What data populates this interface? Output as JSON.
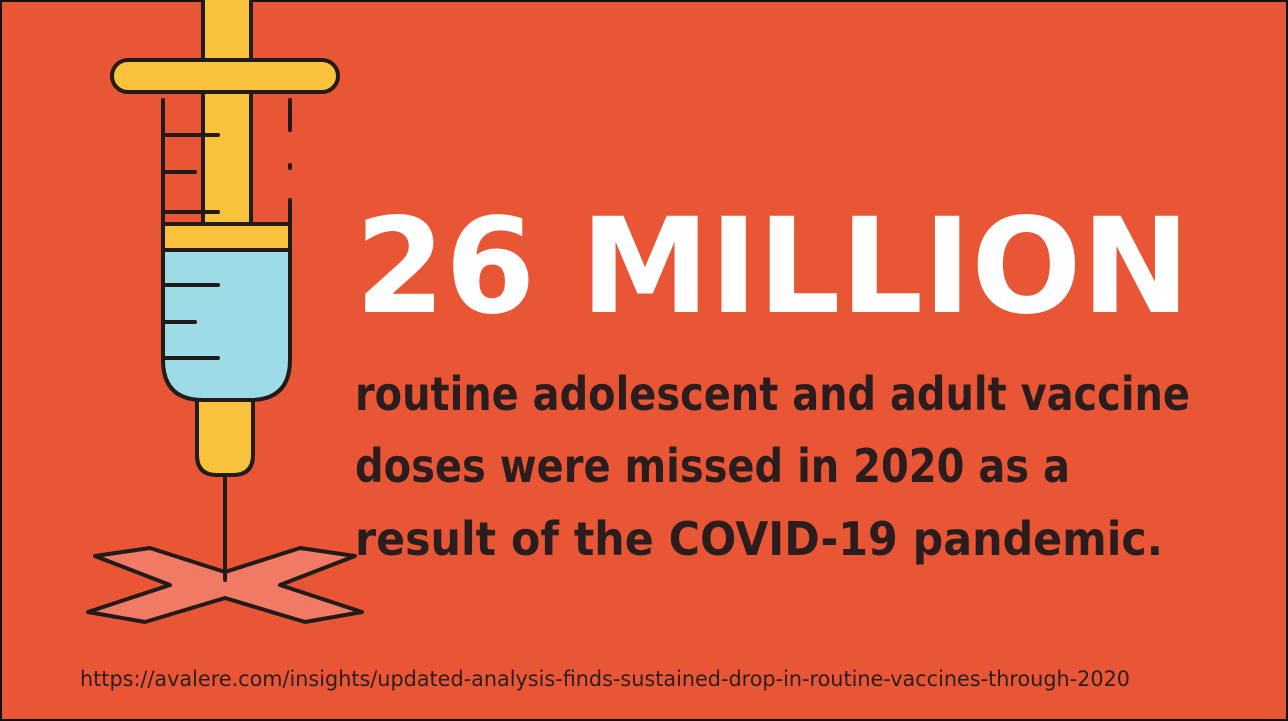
{
  "headline": "26 MILLION",
  "body_lines": [
    "routine adolescent and adult vaccine",
    "doses were missed in 2020 as a",
    "result of the COVID-19 pandemic."
  ],
  "source": "https://avalere.com/insights/updated-analysis-finds-sustained-drop-in-routine-vaccines-through-2020"
}
